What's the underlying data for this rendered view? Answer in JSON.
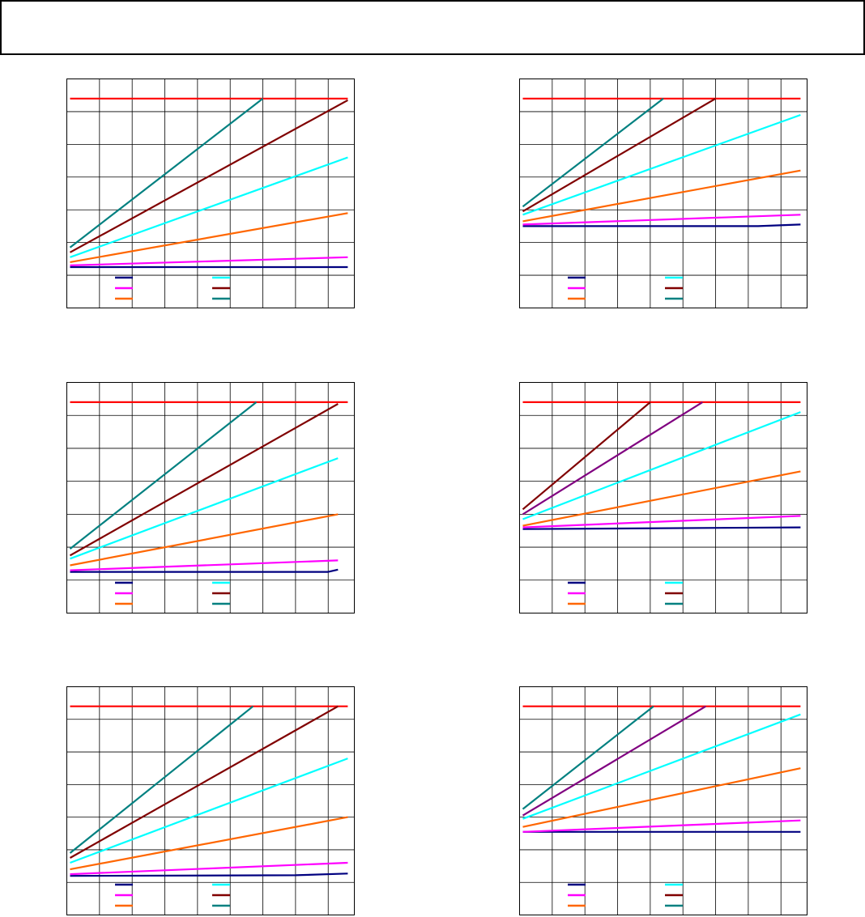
{
  "header": {
    "title": ""
  },
  "colors": {
    "frame": "#000000",
    "grid": "#000000",
    "navy": "#000080",
    "magenta": "#ff00ff",
    "orange": "#ff6600",
    "cyan": "#00ffff",
    "darkred": "#800000",
    "teal": "#008080",
    "purple": "#800080",
    "red": "#ff0000"
  },
  "chart_data": [
    {
      "type": "line",
      "xlim": [
        0,
        8.8
      ],
      "ylim": [
        0,
        7
      ],
      "grid": true,
      "legend": {
        "position": "bottom",
        "entries": [
          "",
          "",
          "",
          "",
          "",
          ""
        ]
      },
      "series": [
        {
          "color": "#ff0000",
          "x": [
            0.1,
            8.6
          ],
          "y": [
            6.4,
            6.4
          ]
        },
        {
          "color": "#000080",
          "x": [
            0.1,
            8.6
          ],
          "y": [
            1.25,
            1.25
          ]
        },
        {
          "color": "#ff00ff",
          "x": [
            0.1,
            8.6
          ],
          "y": [
            1.3,
            1.55
          ]
        },
        {
          "color": "#ff6600",
          "x": [
            0.1,
            8.6
          ],
          "y": [
            1.4,
            2.9
          ]
        },
        {
          "color": "#00ffff",
          "x": [
            0.1,
            8.6
          ],
          "y": [
            1.55,
            4.6
          ]
        },
        {
          "color": "#800000",
          "x": [
            0.1,
            8.6
          ],
          "y": [
            1.7,
            6.35
          ]
        },
        {
          "color": "#008080",
          "x": [
            0.1,
            6.0
          ],
          "y": [
            1.85,
            6.4
          ]
        }
      ]
    },
    {
      "type": "line",
      "xlim": [
        0,
        8.8
      ],
      "ylim": [
        0,
        7
      ],
      "grid": true,
      "legend": {
        "position": "bottom",
        "entries": [
          "",
          "",
          "",
          "",
          "",
          ""
        ]
      },
      "series": [
        {
          "color": "#ff0000",
          "x": [
            0.1,
            8.6
          ],
          "y": [
            6.4,
            6.4
          ]
        },
        {
          "color": "#000080",
          "x": [
            0.1,
            7.3,
            8.6
          ],
          "y": [
            2.5,
            2.5,
            2.55
          ]
        },
        {
          "color": "#ff00ff",
          "x": [
            0.1,
            8.6
          ],
          "y": [
            2.55,
            2.85
          ]
        },
        {
          "color": "#ff6600",
          "x": [
            0.1,
            8.6
          ],
          "y": [
            2.65,
            4.2
          ]
        },
        {
          "color": "#00ffff",
          "x": [
            0.1,
            8.6
          ],
          "y": [
            2.85,
            5.9
          ]
        },
        {
          "color": "#800000",
          "x": [
            0.1,
            6.0
          ],
          "y": [
            2.95,
            6.4
          ]
        },
        {
          "color": "#008080",
          "x": [
            0.1,
            4.4
          ],
          "y": [
            3.1,
            6.4
          ]
        }
      ]
    },
    {
      "type": "line",
      "xlim": [
        0,
        8.8
      ],
      "ylim": [
        0,
        7
      ],
      "grid": true,
      "legend": {
        "position": "bottom",
        "entries": [
          "",
          "",
          "",
          "",
          "",
          ""
        ]
      },
      "series": [
        {
          "color": "#ff0000",
          "x": [
            0.1,
            8.6
          ],
          "y": [
            6.4,
            6.4
          ]
        },
        {
          "color": "#000080",
          "x": [
            0.1,
            8.0,
            8.3
          ],
          "y": [
            1.25,
            1.25,
            1.32
          ]
        },
        {
          "color": "#ff00ff",
          "x": [
            0.1,
            8.3
          ],
          "y": [
            1.3,
            1.6
          ]
        },
        {
          "color": "#ff6600",
          "x": [
            0.1,
            8.3
          ],
          "y": [
            1.45,
            3.0
          ]
        },
        {
          "color": "#00ffff",
          "x": [
            0.1,
            8.3
          ],
          "y": [
            1.65,
            4.7
          ]
        },
        {
          "color": "#800000",
          "x": [
            0.1,
            8.3
          ],
          "y": [
            1.75,
            6.35
          ]
        },
        {
          "color": "#008080",
          "x": [
            0.1,
            5.8
          ],
          "y": [
            1.95,
            6.4
          ]
        }
      ]
    },
    {
      "type": "line",
      "xlim": [
        0,
        8.8
      ],
      "ylim": [
        0,
        7
      ],
      "grid": true,
      "legend": {
        "position": "bottom",
        "entries": [
          "",
          "",
          "",
          "",
          "",
          ""
        ]
      },
      "series": [
        {
          "color": "#ff0000",
          "x": [
            0.1,
            8.6
          ],
          "y": [
            6.4,
            6.4
          ]
        },
        {
          "color": "#000080",
          "x": [
            0.1,
            8.6
          ],
          "y": [
            2.55,
            2.6
          ]
        },
        {
          "color": "#ff00ff",
          "x": [
            0.1,
            8.6
          ],
          "y": [
            2.6,
            2.95
          ]
        },
        {
          "color": "#ff6600",
          "x": [
            0.1,
            8.6
          ],
          "y": [
            2.65,
            4.3
          ]
        },
        {
          "color": "#00ffff",
          "x": [
            0.1,
            8.6
          ],
          "y": [
            2.85,
            6.1
          ]
        },
        {
          "color": "#800080",
          "x": [
            0.1,
            5.6
          ],
          "y": [
            3.0,
            6.4
          ]
        },
        {
          "color": "#800000",
          "x": [
            0.1,
            4.0
          ],
          "y": [
            3.15,
            6.4
          ]
        }
      ]
    },
    {
      "type": "line",
      "xlim": [
        0,
        8.8
      ],
      "ylim": [
        0,
        7
      ],
      "grid": true,
      "legend": {
        "position": "bottom",
        "entries": [
          "",
          "",
          "",
          "",
          "",
          ""
        ]
      },
      "series": [
        {
          "color": "#ff0000",
          "x": [
            0.1,
            8.6
          ],
          "y": [
            6.4,
            6.4
          ]
        },
        {
          "color": "#000080",
          "x": [
            0.1,
            7.0,
            8.6
          ],
          "y": [
            1.2,
            1.22,
            1.27
          ]
        },
        {
          "color": "#ff00ff",
          "x": [
            0.1,
            8.6
          ],
          "y": [
            1.25,
            1.6
          ]
        },
        {
          "color": "#ff6600",
          "x": [
            0.1,
            8.6
          ],
          "y": [
            1.4,
            3.0
          ]
        },
        {
          "color": "#00ffff",
          "x": [
            0.1,
            8.6
          ],
          "y": [
            1.6,
            4.8
          ]
        },
        {
          "color": "#800000",
          "x": [
            0.1,
            8.3
          ],
          "y": [
            1.75,
            6.4
          ]
        },
        {
          "color": "#008080",
          "x": [
            0.1,
            5.7
          ],
          "y": [
            1.9,
            6.4
          ]
        }
      ]
    },
    {
      "type": "line",
      "xlim": [
        0,
        8.8
      ],
      "ylim": [
        0,
        7
      ],
      "grid": true,
      "legend": {
        "position": "bottom",
        "entries": [
          "",
          "",
          "",
          "",
          "",
          ""
        ]
      },
      "series": [
        {
          "color": "#ff0000",
          "x": [
            0.1,
            8.6
          ],
          "y": [
            6.4,
            6.4
          ]
        },
        {
          "color": "#000080",
          "x": [
            0.1,
            8.6
          ],
          "y": [
            2.55,
            2.55
          ]
        },
        {
          "color": "#ff00ff",
          "x": [
            0.1,
            8.6
          ],
          "y": [
            2.55,
            2.9
          ]
        },
        {
          "color": "#ff6600",
          "x": [
            0.1,
            8.6
          ],
          "y": [
            2.7,
            4.5
          ]
        },
        {
          "color": "#00ffff",
          "x": [
            0.1,
            8.6
          ],
          "y": [
            2.95,
            6.15
          ]
        },
        {
          "color": "#800080",
          "x": [
            0.1,
            5.7
          ],
          "y": [
            3.05,
            6.4
          ]
        },
        {
          "color": "#008080",
          "x": [
            0.1,
            4.1
          ],
          "y": [
            3.25,
            6.4
          ]
        }
      ]
    }
  ]
}
